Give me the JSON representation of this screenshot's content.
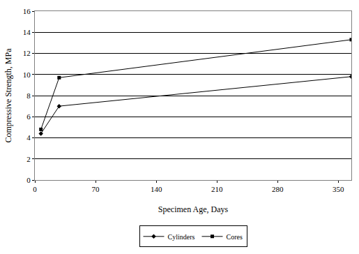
{
  "chart_data": {
    "type": "line",
    "x_label": "Specimen Age, Days",
    "y_label": "Compressive Strength, MPa",
    "series": [
      {
        "name": "Cylinders",
        "color": "#000000",
        "marker": "diamond",
        "x": [
          7,
          28,
          365
        ],
        "values": [
          4.4,
          7.0,
          9.8
        ]
      },
      {
        "name": "Cores",
        "color": "#000000",
        "marker": "square",
        "x": [
          7,
          28,
          365
        ],
        "values": [
          4.8,
          9.7,
          13.3
        ]
      }
    ],
    "xlim": [
      0,
      365
    ],
    "xticks": [
      0,
      70,
      140,
      210,
      280,
      350
    ],
    "ylim": [
      0,
      16
    ],
    "yticks": [
      0,
      2,
      4,
      6,
      8,
      10,
      12,
      14,
      16
    ],
    "grid": "y",
    "legend": "bottom"
  }
}
